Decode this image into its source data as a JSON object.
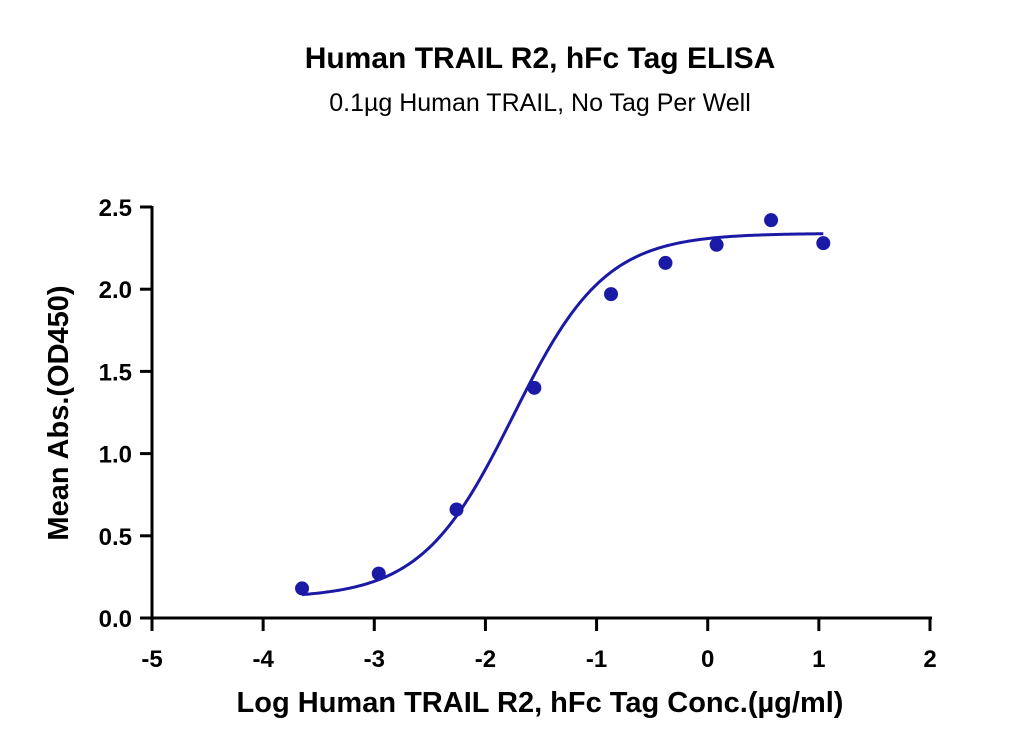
{
  "chart_data": {
    "type": "scatter",
    "title": "Human TRAIL R2, hFc Tag ELISA",
    "subtitle": "0.1µg Human TRAIL, No Tag Per Well",
    "xlabel": "Log Human TRAIL R2, hFc Tag Conc.(µg/ml)",
    "ylabel": "Mean Abs.(OD450)",
    "xlim": [
      -5,
      2
    ],
    "ylim": [
      0,
      2.5
    ],
    "x_ticks": [
      "-5",
      "-4",
      "-3",
      "-2",
      "-1",
      "0",
      "1",
      "2"
    ],
    "y_ticks": [
      "0.0",
      "0.5",
      "1.0",
      "1.5",
      "2.0",
      "2.5"
    ],
    "grid": false,
    "series": [
      {
        "color": "#1a1aa6",
        "points": [
          {
            "x": -3.65,
            "y": 0.18
          },
          {
            "x": -2.96,
            "y": 0.27
          },
          {
            "x": -2.26,
            "y": 0.66
          },
          {
            "x": -1.56,
            "y": 1.4
          },
          {
            "x": -0.87,
            "y": 1.97
          },
          {
            "x": -0.38,
            "y": 2.16
          },
          {
            "x": 0.08,
            "y": 2.27
          },
          {
            "x": 0.57,
            "y": 2.42
          },
          {
            "x": 1.04,
            "y": 2.28
          }
        ],
        "fit": {
          "model": "4PL",
          "bottom": 0.12,
          "top": 2.34,
          "logEC50": -1.75,
          "hillslope": 1.05,
          "x_range": [
            -3.65,
            1.04
          ]
        }
      }
    ]
  }
}
